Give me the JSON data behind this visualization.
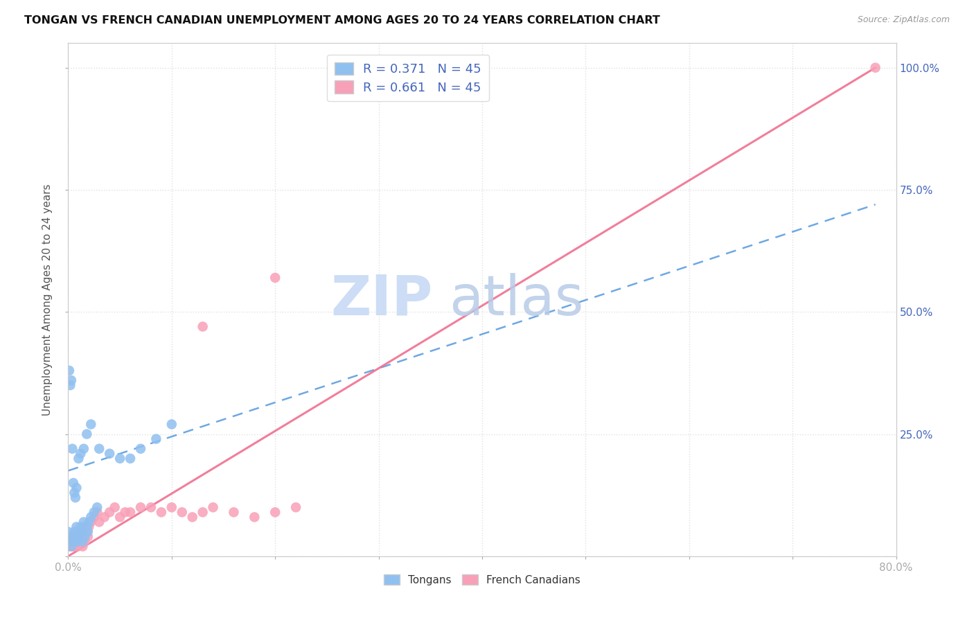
{
  "title": "TONGAN VS FRENCH CANADIAN UNEMPLOYMENT AMONG AGES 20 TO 24 YEARS CORRELATION CHART",
  "source": "Source: ZipAtlas.com",
  "ylabel": "Unemployment Among Ages 20 to 24 years",
  "xlim": [
    0.0,
    0.8
  ],
  "ylim": [
    0.0,
    1.05
  ],
  "legend_r_tongan": "R = 0.371",
  "legend_n_tongan": "N = 45",
  "legend_r_fc": "R = 0.661",
  "legend_n_fc": "N = 45",
  "tongan_color": "#90c0f0",
  "fc_color": "#f8a0b8",
  "trend_tongan_color": "#5599dd",
  "trend_fc_color": "#f07090",
  "background_color": "#ffffff",
  "grid_color": "#e0e0e0",
  "watermark_zip_color": "#ccddf5",
  "watermark_atlas_color": "#b8cce8",
  "right_axis_color": "#4466bb",
  "title_color": "#111111",
  "tongan_x": [
    0.003,
    0.004,
    0.005,
    0.006,
    0.007,
    0.008,
    0.009,
    0.01,
    0.011,
    0.012,
    0.013,
    0.014,
    0.015,
    0.016,
    0.018,
    0.019,
    0.02,
    0.022,
    0.025,
    0.028,
    0.001,
    0.002,
    0.003,
    0.004,
    0.005,
    0.006,
    0.007,
    0.008,
    0.01,
    0.012,
    0.015,
    0.018,
    0.022,
    0.03,
    0.04,
    0.05,
    0.06,
    0.07,
    0.085,
    0.1,
    0.0,
    0.001,
    0.002,
    0.003,
    0.004
  ],
  "tongan_y": [
    0.03,
    0.04,
    0.03,
    0.05,
    0.04,
    0.06,
    0.03,
    0.04,
    0.05,
    0.06,
    0.05,
    0.03,
    0.07,
    0.04,
    0.06,
    0.05,
    0.07,
    0.08,
    0.09,
    0.1,
    0.38,
    0.35,
    0.36,
    0.22,
    0.15,
    0.13,
    0.12,
    0.14,
    0.2,
    0.21,
    0.22,
    0.25,
    0.27,
    0.22,
    0.21,
    0.2,
    0.2,
    0.22,
    0.24,
    0.27,
    0.05,
    0.04,
    0.03,
    0.02,
    0.03
  ],
  "fc_x": [
    0.003,
    0.004,
    0.005,
    0.006,
    0.007,
    0.008,
    0.009,
    0.01,
    0.011,
    0.012,
    0.013,
    0.014,
    0.015,
    0.016,
    0.018,
    0.019,
    0.02,
    0.022,
    0.025,
    0.028,
    0.03,
    0.035,
    0.04,
    0.045,
    0.05,
    0.055,
    0.06,
    0.07,
    0.08,
    0.09,
    0.1,
    0.11,
    0.12,
    0.13,
    0.14,
    0.16,
    0.18,
    0.2,
    0.22,
    0.13,
    0.2,
    0.001,
    0.002,
    0.78,
    0.004
  ],
  "fc_y": [
    0.02,
    0.03,
    0.02,
    0.04,
    0.03,
    0.05,
    0.02,
    0.03,
    0.04,
    0.05,
    0.04,
    0.02,
    0.06,
    0.03,
    0.05,
    0.04,
    0.06,
    0.07,
    0.08,
    0.09,
    0.07,
    0.08,
    0.09,
    0.1,
    0.08,
    0.09,
    0.09,
    0.1,
    0.1,
    0.09,
    0.1,
    0.09,
    0.08,
    0.09,
    0.1,
    0.09,
    0.08,
    0.09,
    0.1,
    0.47,
    0.57,
    0.02,
    0.03,
    1.0,
    0.02
  ],
  "trend_tongan_x0": 0.0,
  "trend_tongan_y0": 0.175,
  "trend_tongan_x1": 0.78,
  "trend_tongan_y1": 0.72,
  "trend_fc_x0": 0.0,
  "trend_fc_y0": 0.0,
  "trend_fc_x1": 0.78,
  "trend_fc_y1": 1.0
}
